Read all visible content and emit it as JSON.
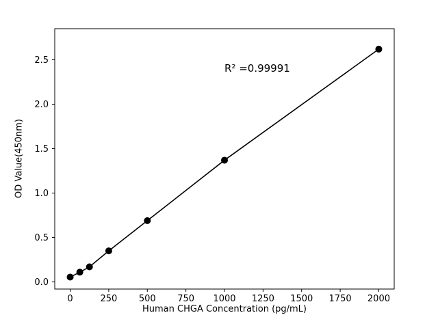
{
  "chart_data": {
    "type": "scatter",
    "title": "",
    "xlabel": "Human CHGA Concentration (pg/mL)",
    "ylabel": "OD Value(450nm)",
    "annotation": "R² =0.99991",
    "x": [
      0,
      62.5,
      125,
      250,
      500,
      1000,
      2000
    ],
    "y": [
      0.055,
      0.11,
      0.17,
      0.35,
      0.69,
      1.37,
      2.62
    ],
    "xticks": [
      0,
      250,
      500,
      750,
      1000,
      1250,
      1500,
      1750,
      2000
    ],
    "yticks": [
      0.0,
      0.5,
      1.0,
      1.5,
      2.0,
      2.5
    ],
    "xlim": [
      -100,
      2100
    ],
    "ylim": [
      -0.08,
      2.85
    ],
    "line": true,
    "grid": false,
    "legend": "none",
    "marker_color": "#000000",
    "line_color": "#000000",
    "axis_color": "#000000",
    "background": "#ffffff"
  }
}
